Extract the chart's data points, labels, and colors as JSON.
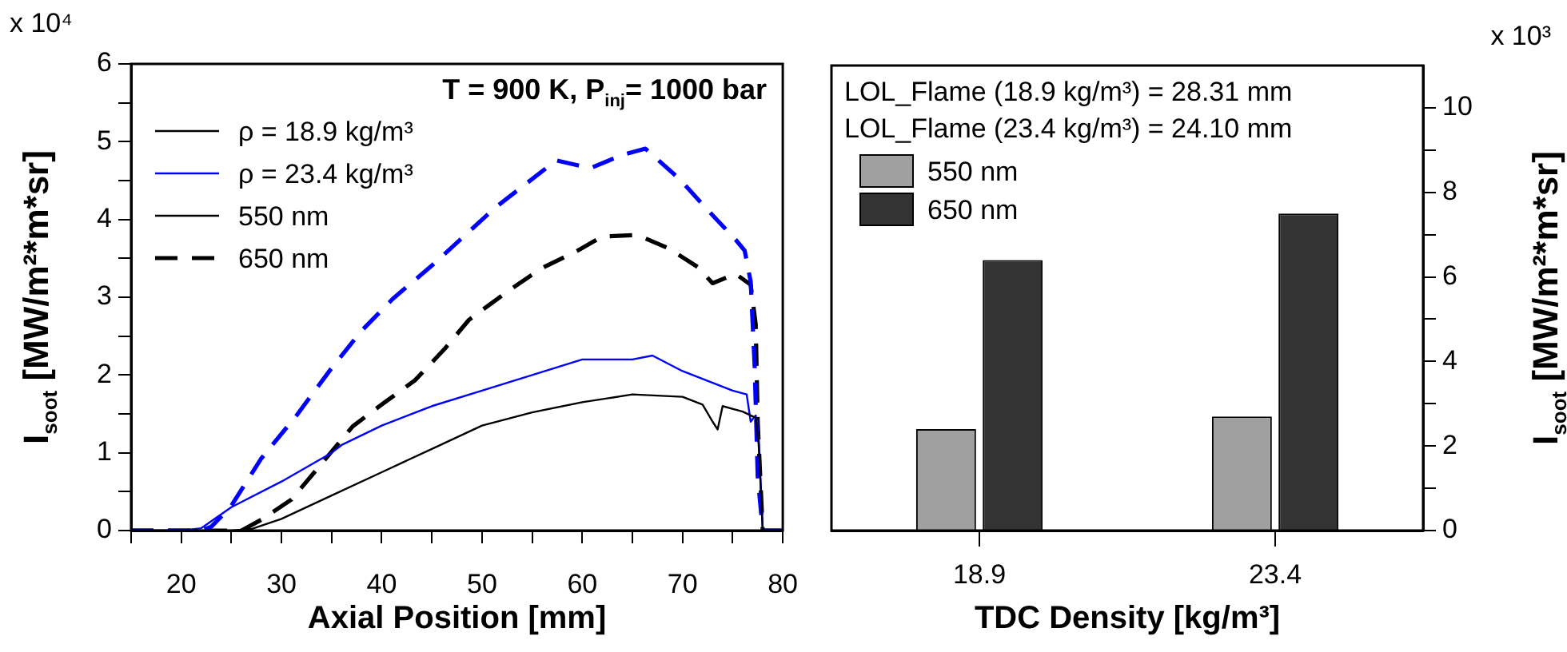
{
  "chart_data": [
    {
      "type": "line",
      "title": "T = 900 K, P$_{inj}$= 1000 bar",
      "xlabel": "Axial Position [mm]",
      "ylabel": "I$_{soot}$ [MW/m²*m*sr]",
      "annotations": [
        "x 10⁴",
        "550 nm"
      ],
      "legend": "top left",
      "grid": false,
      "xlim": [
        15,
        80
      ],
      "xticks": [
        {
          "value": 15,
          "label": null
        },
        20,
        {
          "value": 25,
          "label": null
        },
        30,
        {
          "value": 35,
          "label": null
        },
        40,
        {
          "value": 45,
          "label": null
        },
        50,
        {
          "value": 55,
          "label": null
        },
        60,
        {
          "value": 65,
          "label": null
        },
        70,
        {
          "value": 75,
          "label": null
        },
        80
      ],
      "ylim": [
        0,
        6
      ],
      "yticks": [
        0,
        {
          "value": 0.5,
          "label": null
        },
        1,
        {
          "value": 1.5,
          "label": null
        },
        2,
        {
          "value": 2.5,
          "label": null
        },
        3,
        {
          "value": 3.5,
          "label": null
        },
        4,
        {
          "value": 4.5,
          "label": null
        },
        5,
        {
          "value": 5.5,
          "label": null
        },
        6
      ],
      "series": [
        {
          "name": "ρ = 18.9 kg/m³",
          "color": "#000000",
          "line_style": "solid",
          "x": [
            15,
            25,
            27,
            30,
            35,
            40,
            45,
            50,
            55,
            60,
            65,
            70,
            72,
            73,
            73.5,
            74,
            76,
            77.3,
            77.6,
            78,
            80
          ],
          "values": [
            0,
            0,
            0.02,
            0.15,
            0.45,
            0.75,
            1.05,
            1.35,
            1.52,
            1.65,
            1.75,
            1.72,
            1.62,
            1.4,
            1.3,
            1.6,
            1.53,
            1.45,
            1.1,
            0,
            0
          ]
        },
        {
          "name": "ρ = 23.4 kg/m³",
          "color": "#0000ff",
          "line_style": "solid",
          "x": [
            15,
            20,
            22,
            25,
            30,
            35,
            36,
            40,
            45,
            50,
            55,
            60,
            65,
            67,
            70,
            75,
            76.4,
            76.8,
            77.3,
            77.6,
            78,
            80
          ],
          "values": [
            0,
            0,
            0.03,
            0.3,
            0.63,
            1.0,
            1.1,
            1.35,
            1.6,
            1.8,
            2.0,
            2.2,
            2.2,
            2.25,
            2.05,
            1.8,
            1.75,
            1.4,
            1.48,
            1.2,
            0,
            0
          ]
        },
        {
          "color": "#0000ff",
          "line_style": "dashed",
          "x": [
            15,
            22,
            23,
            24.9,
            28,
            31.5,
            35,
            38,
            41.1,
            45.2,
            51.3,
            57.4,
            60.8,
            64,
            66.3,
            69.7,
            72.3,
            75.3,
            76.2,
            76.8,
            77.2,
            77.5,
            78,
            80
          ],
          "values": [
            0,
            0,
            0.05,
            0.3,
            0.93,
            1.48,
            2.09,
            2.57,
            2.98,
            3.43,
            4.15,
            4.76,
            4.66,
            4.83,
            4.91,
            4.52,
            4.15,
            3.74,
            3.6,
            3.2,
            2.1,
            0.7,
            0,
            0
          ]
        },
        {
          "name": "650 nm",
          "color": "#000000",
          "line_style": "dashed",
          "x": [
            15,
            26,
            28,
            31,
            34,
            37.1,
            40.2,
            43.3,
            46.3,
            48.7,
            52.4,
            55.9,
            59.4,
            62,
            65.5,
            68.6,
            71.5,
            73,
            75.3,
            76.8,
            77.3,
            77.5,
            78,
            80
          ],
          "values": [
            0,
            0,
            0.14,
            0.4,
            0.86,
            1.34,
            1.64,
            1.93,
            2.34,
            2.71,
            3.06,
            3.37,
            3.59,
            3.78,
            3.8,
            3.63,
            3.39,
            3.18,
            3.3,
            3.16,
            2.65,
            1.4,
            0,
            0
          ]
        }
      ]
    },
    {
      "type": "bar",
      "xlabel": "TDC Density [kg/m³]",
      "y2label": "I$_{soot}$ [MW/m²*m*sr]",
      "annotations": [
        "x 10³",
        "LOL_Flame (18.9 kg/m³) = 28.31 mm",
        "LOL_Flame (23.4 kg/m³) = 24.10 mm"
      ],
      "legend": "top left",
      "grid": false,
      "categories": [
        "18.9",
        "23.4"
      ],
      "y2lim": [
        0,
        11
      ],
      "y2ticks": [
        0,
        {
          "value": 1,
          "label": null
        },
        2,
        {
          "value": 3,
          "label": null
        },
        4,
        {
          "value": 5,
          "label": null
        },
        6,
        {
          "value": 7,
          "label": null
        },
        8,
        {
          "value": 9,
          "label": null
        },
        10
      ],
      "series": [
        {
          "name": "550 nm",
          "color": "#a0a0a0",
          "axis": "y2",
          "values": [
            2.4,
            2.7
          ]
        },
        {
          "name": "650 nm",
          "color": "#333333",
          "axis": "y2",
          "values": [
            6.4,
            7.5
          ]
        }
      ]
    }
  ]
}
